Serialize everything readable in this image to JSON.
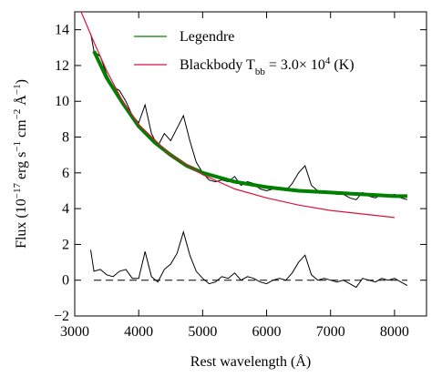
{
  "chart_data": {
    "type": "line",
    "xlabel": "Rest wavelength (Å)",
    "ylabel": "Flux (10^{−17} erg s^{−1} cm^{−2} Å^{−1})",
    "xlim": [
      3000,
      8500
    ],
    "ylim": [
      -2,
      15
    ],
    "xticks": [
      3000,
      4000,
      5000,
      6000,
      7000,
      8000
    ],
    "yticks": [
      {
        "value": -2,
        "label": "−2"
      },
      0,
      2,
      4,
      6,
      8,
      10,
      12,
      14
    ],
    "legend": "upper center",
    "reference_line": {
      "y": 0,
      "x": [
        3300,
        8200
      ],
      "style": "dashed",
      "color": "#000000"
    },
    "series": [
      {
        "color": "#000000",
        "width": 1,
        "x": [
          3250,
          3300,
          3400,
          3500,
          3600,
          3700,
          3800,
          3900,
          4000,
          4100,
          4200,
          4300,
          4400,
          4500,
          4600,
          4700,
          4800,
          4900,
          5000,
          5100,
          5200,
          5300,
          5400,
          5500,
          5600,
          5700,
          5800,
          5900,
          6000,
          6100,
          6200,
          6300,
          6400,
          6500,
          6600,
          6700,
          6800,
          6900,
          7000,
          7100,
          7200,
          7300,
          7400,
          7500,
          7600,
          7700,
          7800,
          7900,
          8000,
          8100,
          8200
        ],
        "values": [
          13.8,
          12.8,
          12.5,
          11.5,
          10.8,
          10.6,
          10.0,
          9.2,
          8.8,
          9.8,
          8.2,
          7.5,
          8.2,
          7.8,
          8.5,
          9.2,
          7.8,
          6.6,
          6.0,
          5.6,
          5.5,
          5.6,
          5.5,
          5.8,
          5.3,
          5.5,
          5.4,
          5.1,
          5.0,
          5.1,
          5.2,
          5.0,
          5.4,
          6.0,
          6.4,
          5.3,
          5.0,
          5.0,
          4.9,
          4.8,
          4.8,
          4.6,
          4.5,
          4.9,
          4.7,
          4.6,
          4.8,
          4.7,
          4.8,
          4.6,
          4.5
        ]
      },
      {
        "name": "Legendre",
        "color": "#008000",
        "width": 4,
        "x": [
          3300,
          3500,
          3750,
          4000,
          4250,
          4500,
          4750,
          5000,
          5500,
          6000,
          6500,
          7000,
          7500,
          8000,
          8200
        ],
        "values": [
          12.8,
          11.3,
          9.9,
          8.6,
          7.7,
          7.0,
          6.4,
          6.0,
          5.5,
          5.2,
          5.0,
          4.9,
          4.8,
          4.7,
          4.7
        ]
      },
      {
        "name": "Blackbody T_{bb} = 3.0× 10^{4} (K)",
        "color": "#dc143c",
        "width": 1.2,
        "x": [
          3100,
          3300,
          3500,
          3750,
          4000,
          4500,
          5000,
          5500,
          6000,
          6500,
          7000,
          7500,
          8000
        ],
        "values": [
          15,
          13.3,
          11.7,
          10.0,
          8.7,
          7.0,
          5.9,
          5.1,
          4.6,
          4.2,
          3.9,
          3.7,
          3.5
        ]
      },
      {
        "color": "#000000",
        "width": 1,
        "x": [
          3250,
          3300,
          3400,
          3500,
          3600,
          3700,
          3800,
          3900,
          4000,
          4100,
          4200,
          4300,
          4400,
          4500,
          4600,
          4700,
          4800,
          4900,
          5000,
          5100,
          5200,
          5300,
          5400,
          5500,
          5600,
          5700,
          5800,
          5900,
          6000,
          6100,
          6200,
          6300,
          6400,
          6500,
          6600,
          6700,
          6800,
          6900,
          7000,
          7100,
          7200,
          7300,
          7400,
          7500,
          7600,
          7700,
          7800,
          7900,
          8000,
          8100,
          8200
        ],
        "values": [
          1.7,
          0.5,
          0.6,
          0.3,
          0.2,
          0.5,
          0.6,
          0.1,
          0.1,
          1.6,
          0.2,
          -0.1,
          0.6,
          0.9,
          1.5,
          2.7,
          1.4,
          0.5,
          0.1,
          -0.2,
          -0.1,
          0.2,
          0.1,
          0.4,
          0,
          0.2,
          0.1,
          -0.1,
          -0.2,
          0,
          0.1,
          0,
          0.4,
          1.0,
          1.4,
          0.3,
          0,
          0.1,
          0,
          -0.1,
          0,
          -0.2,
          -0.4,
          0.1,
          0,
          -0.1,
          0.1,
          0,
          0.1,
          -0.1,
          -0.3
        ]
      }
    ]
  }
}
